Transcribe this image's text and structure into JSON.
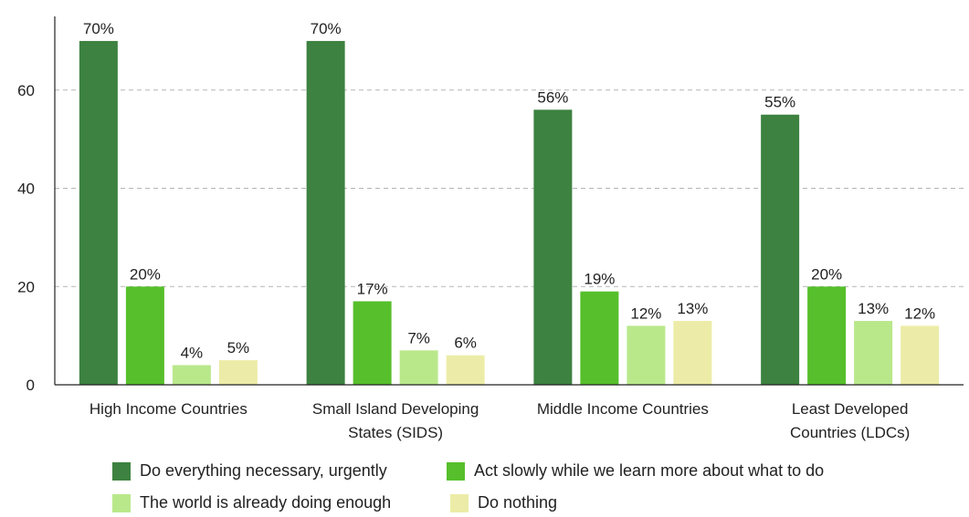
{
  "chart_data": {
    "type": "bar",
    "categories": [
      "High Income Countries",
      "Small Island Developing States (SIDS)",
      "Middle Income Countries",
      "Least Developed Countries (LDCs)"
    ],
    "category_lines": [
      [
        "High Income Countries"
      ],
      [
        "Small Island Developing",
        "States (SIDS)"
      ],
      [
        "Middle Income Countries"
      ],
      [
        "Least Developed",
        "Countries (LDCs)"
      ]
    ],
    "series": [
      {
        "name": "Do everything necessary, urgently",
        "color": "#3d8240",
        "values": [
          70,
          70,
          56,
          55
        ],
        "labels": [
          "70%",
          "70%",
          "56%",
          "55%"
        ]
      },
      {
        "name": "Act slowly while we learn more about what to do",
        "color": "#56bf2b",
        "values": [
          20,
          17,
          19,
          20
        ],
        "labels": [
          "20%",
          "17%",
          "19%",
          "20%"
        ]
      },
      {
        "name": "The world is already doing enough",
        "color": "#b9e88b",
        "values": [
          4,
          7,
          12,
          13
        ],
        "labels": [
          "4%",
          "7%",
          "12%",
          "13%"
        ]
      },
      {
        "name": "Do nothing",
        "color": "#ececa8",
        "values": [
          5,
          6,
          13,
          12
        ],
        "labels": [
          "5%",
          "6%",
          "13%",
          "12%"
        ]
      }
    ],
    "yticks": [
      "0",
      "20",
      "40",
      "60"
    ],
    "ylim": [
      0,
      75
    ],
    "grid": true,
    "legend_position": "bottom"
  }
}
